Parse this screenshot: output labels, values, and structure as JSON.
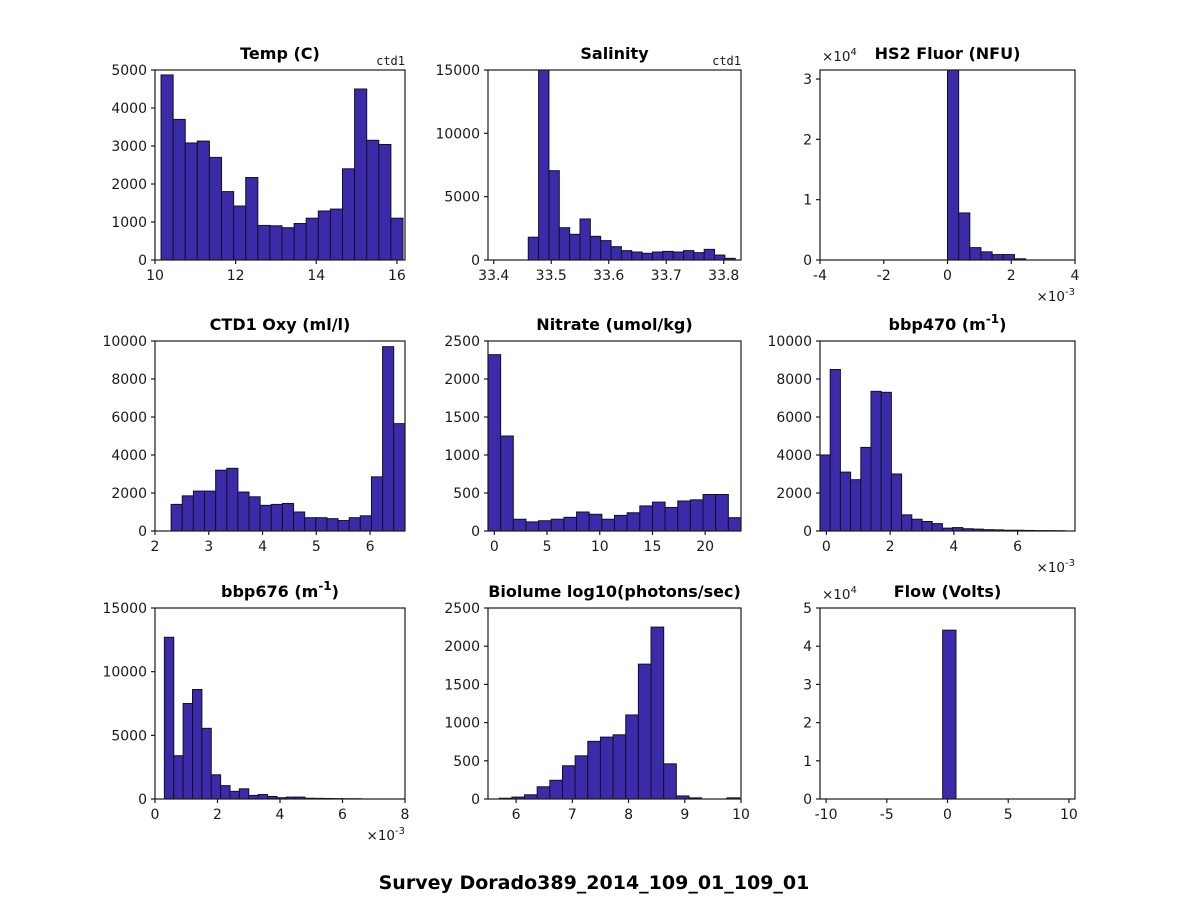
{
  "figure": {
    "title": "Survey Dorado389_2014_109_01_109_01",
    "background_color": "#ffffff",
    "bar_fill_color": "#3c2ba8",
    "bar_edge_color": "#10102a",
    "axis_color": "#1a1a1a",
    "text_color": "#1a1a1a"
  },
  "chart_data": [
    {
      "type": "bar",
      "title": "Temp (C)",
      "annotation": "ctd1",
      "xlim": [
        10,
        16.2
      ],
      "ylim": [
        0,
        5000
      ],
      "bin_start": 10.15,
      "bin_width": 0.3,
      "values": [
        4870,
        3700,
        3080,
        3130,
        2700,
        1800,
        1420,
        2170,
        910,
        900,
        850,
        960,
        1100,
        1290,
        1340,
        2400,
        4500,
        3150,
        3040,
        1100
      ],
      "xtick_values": [
        10,
        12,
        14,
        16
      ],
      "xtick_labels": [
        "10",
        "12",
        "14",
        "16"
      ],
      "ytick_values": [
        0,
        1000,
        2000,
        3000,
        4000,
        5000
      ],
      "ytick_labels": [
        "0",
        "1000",
        "2000",
        "3000",
        "4000",
        "5000"
      ],
      "x_exp_label": null,
      "y_exp_label": null
    },
    {
      "type": "bar",
      "title": "Salinity",
      "annotation": "ctd1",
      "xlim": [
        33.39,
        33.83
      ],
      "ylim": [
        0,
        15000
      ],
      "bin_start": 33.46,
      "bin_width": 0.018,
      "values": [
        1800,
        15600,
        7050,
        2550,
        2030,
        3240,
        1870,
        1530,
        1050,
        740,
        630,
        530,
        630,
        680,
        630,
        740,
        580,
        840,
        390,
        130
      ],
      "xtick_values": [
        33.4,
        33.5,
        33.6,
        33.7,
        33.8
      ],
      "xtick_labels": [
        "33.4",
        "33.5",
        "33.6",
        "33.7",
        "33.8"
      ],
      "ytick_values": [
        0,
        5000,
        10000,
        15000
      ],
      "ytick_labels": [
        "0",
        "5000",
        "10000",
        "15000"
      ],
      "x_exp_label": null,
      "y_exp_label": null
    },
    {
      "type": "bar",
      "title": "HS2 Fluor (NFU)",
      "annotation": null,
      "xlim": [
        -0.004,
        0.004
      ],
      "ylim": [
        0,
        31500
      ],
      "bin_start": 0,
      "bin_width": 0.00035,
      "values": [
        31500,
        7800,
        2050,
        1350,
        900,
        900,
        200
      ],
      "xtick_values": [
        -0.004,
        -0.002,
        0,
        0.002,
        0.004
      ],
      "xtick_labels": [
        "-4",
        "-2",
        "0",
        "2",
        "4"
      ],
      "ytick_values": [
        0,
        10000,
        20000,
        30000
      ],
      "ytick_labels": [
        "0",
        "1",
        "2",
        "3"
      ],
      "x_exp_label": "×10^{-3}",
      "y_exp_label": "×10^{4}"
    },
    {
      "type": "bar",
      "title": "CTD1 Oxy (ml/l)",
      "annotation": null,
      "xlim": [
        2,
        6.65
      ],
      "ylim": [
        0,
        10000
      ],
      "bin_start": 2.3,
      "bin_width": 0.207,
      "values": [
        1400,
        1850,
        2100,
        2100,
        3200,
        3300,
        2050,
        1800,
        1350,
        1400,
        1450,
        1000,
        700,
        700,
        650,
        550,
        700,
        800,
        2850,
        9700,
        5650
      ],
      "xtick_values": [
        2,
        3,
        4,
        5,
        6
      ],
      "xtick_labels": [
        "2",
        "3",
        "4",
        "5",
        "6"
      ],
      "ytick_values": [
        0,
        2000,
        4000,
        6000,
        8000,
        10000
      ],
      "ytick_labels": [
        "0",
        "2000",
        "4000",
        "6000",
        "8000",
        "10000"
      ],
      "x_exp_label": null,
      "y_exp_label": null
    },
    {
      "type": "bar",
      "title": "Nitrate (umol/kg)",
      "annotation": null,
      "xlim": [
        -0.6,
        23.4
      ],
      "ylim": [
        0,
        2500
      ],
      "bin_start": -0.6,
      "bin_width": 1.2,
      "values": [
        2320,
        1250,
        155,
        120,
        135,
        155,
        180,
        250,
        220,
        155,
        205,
        240,
        330,
        380,
        310,
        395,
        410,
        480,
        480,
        175
      ],
      "xtick_values": [
        0,
        5,
        10,
        15,
        20
      ],
      "xtick_labels": [
        "0",
        "5",
        "10",
        "15",
        "20"
      ],
      "ytick_values": [
        0,
        500,
        1000,
        1500,
        2000,
        2500
      ],
      "ytick_labels": [
        "0",
        "500",
        "1000",
        "1500",
        "2000",
        "2500"
      ],
      "x_exp_label": null,
      "y_exp_label": null
    },
    {
      "type": "bar",
      "title": "bbp470 (m^{-1})",
      "annotation": null,
      "xlim": [
        -0.0002,
        0.0078
      ],
      "ylim": [
        0,
        10000
      ],
      "bin_start": -0.0002,
      "bin_width": 0.00032,
      "values": [
        4000,
        8500,
        3100,
        2700,
        4400,
        7350,
        7300,
        3000,
        850,
        620,
        500,
        390,
        150,
        180,
        120,
        100,
        70,
        60,
        40,
        40,
        30,
        20,
        20,
        15
      ],
      "xtick_values": [
        0,
        0.002,
        0.004,
        0.006
      ],
      "xtick_labels": [
        "0",
        "2",
        "4",
        "6"
      ],
      "ytick_values": [
        0,
        2000,
        4000,
        6000,
        8000,
        10000
      ],
      "ytick_labels": [
        "0",
        "2000",
        "4000",
        "6000",
        "8000",
        "10000"
      ],
      "x_exp_label": "×10^{-3}",
      "y_exp_label": null
    },
    {
      "type": "bar",
      "title": "bbp676 (m^{-1})",
      "annotation": null,
      "xlim": [
        0,
        0.008
      ],
      "ylim": [
        0,
        15000
      ],
      "bin_start": 0.0003,
      "bin_width": 0.0003,
      "values": [
        12700,
        3400,
        7500,
        8600,
        5550,
        1900,
        1050,
        600,
        800,
        280,
        350,
        200,
        100,
        150,
        150,
        60,
        50,
        40,
        30,
        20,
        20
      ],
      "xtick_values": [
        0,
        0.002,
        0.004,
        0.006,
        0.008
      ],
      "xtick_labels": [
        "0",
        "2",
        "4",
        "6",
        "8"
      ],
      "ytick_values": [
        0,
        5000,
        10000,
        15000
      ],
      "ytick_labels": [
        "0",
        "5000",
        "10000",
        "15000"
      ],
      "x_exp_label": "×10^{-3}",
      "y_exp_label": null
    },
    {
      "type": "bar",
      "title": "Biolume log10(photons/sec)",
      "annotation": null,
      "xlim": [
        5.5,
        10
      ],
      "ylim": [
        0,
        2500
      ],
      "bin_start": 5.7,
      "bin_width": 0.225,
      "values": [
        10,
        25,
        55,
        160,
        245,
        435,
        565,
        755,
        810,
        840,
        1100,
        1765,
        2250,
        460,
        40,
        15,
        0,
        0,
        15
      ],
      "xtick_values": [
        6,
        7,
        8,
        9,
        10
      ],
      "xtick_labels": [
        "6",
        "7",
        "8",
        "9",
        "10"
      ],
      "ytick_values": [
        0,
        500,
        1000,
        1500,
        2000,
        2500
      ],
      "ytick_labels": [
        "0",
        "500",
        "1000",
        "1500",
        "2000",
        "2500"
      ],
      "x_exp_label": null,
      "y_exp_label": null
    },
    {
      "type": "bar",
      "title": "Flow (Volts)",
      "annotation": null,
      "xlim": [
        -10.5,
        10.5
      ],
      "ylim": [
        0,
        50000
      ],
      "bin_start": -0.4,
      "bin_width": 1.1,
      "values": [
        44200
      ],
      "xtick_values": [
        -10,
        -5,
        0,
        5,
        10
      ],
      "xtick_labels": [
        "-10",
        "-5",
        "0",
        "5",
        "10"
      ],
      "ytick_values": [
        0,
        10000,
        20000,
        30000,
        40000,
        50000
      ],
      "ytick_labels": [
        "0",
        "1",
        "2",
        "3",
        "4",
        "5"
      ],
      "x_exp_label": null,
      "y_exp_label": "×10^{4}"
    }
  ]
}
